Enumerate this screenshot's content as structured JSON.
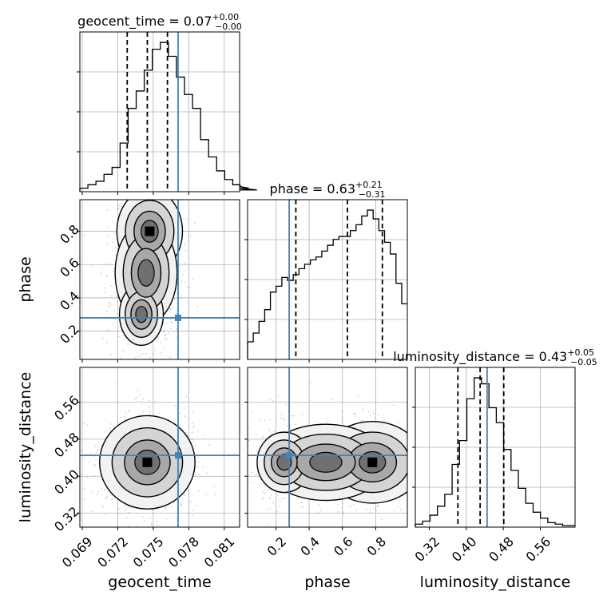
{
  "chart_data": {
    "type": "corner",
    "parameters": [
      "geocent_time",
      "phase",
      "luminosity_distance"
    ],
    "truths": [
      0.0771,
      0.28,
      0.445
    ],
    "colors": {
      "truth": "#4682b4",
      "hist": "#000000",
      "grid": "#b0b0b0",
      "samples": "#808080"
    },
    "grid": true,
    "titles": [
      {
        "param": "geocent_time",
        "value": "0.07",
        "sup": "+0.00",
        "sub": "−0.00"
      },
      {
        "param": "phase",
        "value": "0.63",
        "sup": "+0.21",
        "sub": "−0.31"
      },
      {
        "param": "luminosity_distance",
        "value": "0.43",
        "sup": "+0.05",
        "sub": "−0.05"
      }
    ],
    "ranges": [
      [
        0.0688,
        0.0823
      ],
      [
        0.03,
        0.99
      ],
      [
        0.29,
        0.635
      ]
    ],
    "ticks": [
      {
        "values": [
          0.069,
          0.072,
          0.075,
          0.078,
          0.081
        ],
        "labels": [
          "0.069",
          "0.072",
          "0.075",
          "0.078",
          "0.081"
        ]
      },
      {
        "values": [
          0.2,
          0.4,
          0.6,
          0.8
        ],
        "labels": [
          "0.2",
          "0.4",
          "0.6",
          "0.8"
        ]
      },
      {
        "values": [
          0.32,
          0.4,
          0.48,
          0.56
        ],
        "labels": [
          "0.32",
          "0.40",
          "0.48",
          "0.56"
        ]
      }
    ],
    "quantiles": [
      [
        0.0728,
        0.0745,
        0.0762
      ],
      [
        0.32,
        0.63,
        0.84
      ],
      [
        0.382,
        0.43,
        0.481
      ]
    ],
    "marginals": [
      {
        "edges_start": 0.0688,
        "bin_width": 0.00068,
        "counts": [
          2,
          4,
          6,
          10,
          14,
          28,
          48,
          58,
          70,
          82,
          86,
          78,
          66,
          56,
          48,
          30,
          20,
          12,
          7,
          4,
          3,
          2,
          1
        ]
      },
      {
        "edges_start": 0.03,
        "bin_width": 0.0343,
        "counts": [
          12,
          18,
          26,
          34,
          46,
          50,
          56,
          54,
          58,
          62,
          65,
          68,
          70,
          74,
          78,
          82,
          84,
          84,
          88,
          92,
          98,
          102,
          96,
          88,
          80,
          72,
          52,
          38
        ]
      },
      {
        "edges_start": 0.29,
        "bin_width": 0.0159,
        "counts": [
          2,
          4,
          8,
          14,
          22,
          42,
          58,
          86,
          100,
          96,
          80,
          70,
          52,
          38,
          26,
          16,
          10,
          6,
          3,
          2,
          1,
          1
        ]
      }
    ],
    "posteriors_2d": [
      {
        "x": "geocent_time",
        "y": "phase",
        "centers": [
          [
            0.0747,
            0.8,
            0.0011,
            0.1,
            1.0
          ],
          [
            0.0744,
            0.55,
            0.0012,
            0.14,
            0.7
          ],
          [
            0.074,
            0.3,
            0.001,
            0.1,
            0.45
          ]
        ]
      },
      {
        "x": "geocent_time",
        "y": "luminosity_distance",
        "centers": [
          [
            0.0745,
            0.43,
            0.0016,
            0.04,
            1.0
          ]
        ]
      },
      {
        "x": "phase",
        "y": "luminosity_distance",
        "centers": [
          [
            0.78,
            0.43,
            0.12,
            0.035,
            1.0
          ],
          [
            0.5,
            0.43,
            0.18,
            0.04,
            0.6
          ],
          [
            0.25,
            0.43,
            0.1,
            0.04,
            0.3
          ]
        ]
      }
    ]
  }
}
